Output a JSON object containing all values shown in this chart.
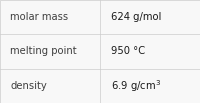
{
  "rows": [
    {
      "label": "molar mass",
      "value": "624 g/mol",
      "has_super": false
    },
    {
      "label": "melting point",
      "value": "950 °C",
      "has_super": false
    },
    {
      "label": "density",
      "value": "6.9 g/cm",
      "has_super": true,
      "super_char": "3"
    }
  ],
  "bg_color": "#f8f8f8",
  "border_color": "#cccccc",
  "label_color": "#404040",
  "value_color": "#1a1a1a",
  "label_fontsize": 7.2,
  "value_fontsize": 7.2,
  "col_split": 0.5
}
